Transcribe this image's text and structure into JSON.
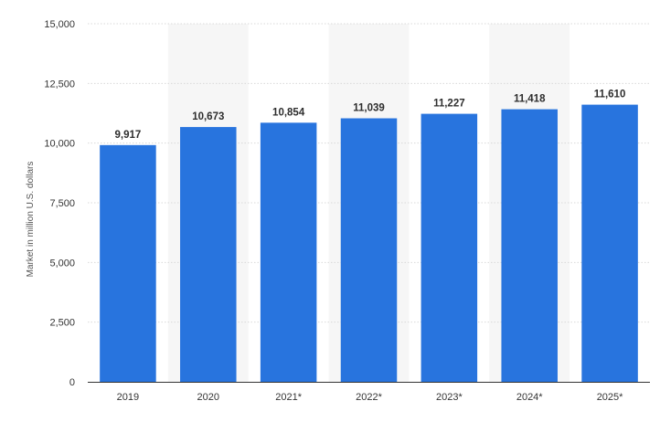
{
  "chart_data": {
    "type": "bar",
    "categories": [
      "2019",
      "2020",
      "2021*",
      "2022*",
      "2023*",
      "2024*",
      "2025*"
    ],
    "values": [
      9917,
      10673,
      10854,
      11039,
      11227,
      11418,
      11610
    ],
    "value_labels": [
      "9,917",
      "10,673",
      "10,854",
      "11,039",
      "11,227",
      "11,418",
      "11,610"
    ],
    "ylabel": "Market in million U.S. dollars",
    "ylim": [
      0,
      15000
    ],
    "yticks": [
      0,
      2500,
      5000,
      7500,
      10000,
      12500,
      15000
    ],
    "ytick_labels": [
      "0",
      "2,500",
      "5,000",
      "7,500",
      "10,000",
      "12,500",
      "15,000"
    ],
    "grid": true,
    "bar_color": "#2874de",
    "band_color": "#f6f6f6"
  }
}
